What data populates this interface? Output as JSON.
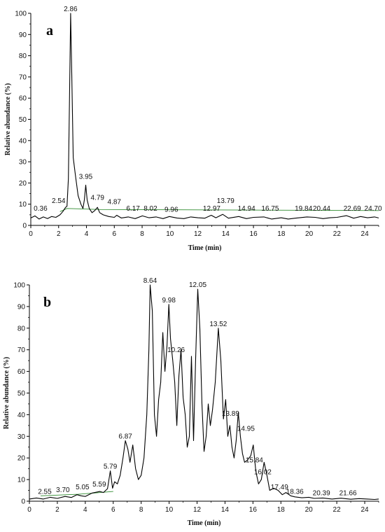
{
  "chart_data": [
    {
      "type": "line",
      "panel_label": "a",
      "xlabel": "Time (min)",
      "ylabel": "Relative abundance (%)",
      "xlim": [
        0,
        25
      ],
      "ylim": [
        0,
        100
      ],
      "x_ticks": [
        0,
        2,
        4,
        6,
        8,
        10,
        12,
        14,
        16,
        18,
        20,
        22,
        24
      ],
      "y_ticks": [
        0,
        10,
        20,
        30,
        40,
        50,
        60,
        70,
        80,
        90,
        100
      ],
      "grid": false,
      "series": [
        {
          "x": [
            0.0,
            0.3,
            0.6,
            0.9,
            1.2,
            1.5,
            1.8,
            2.1,
            2.3,
            2.5,
            2.6,
            2.7,
            2.78,
            2.86,
            2.95,
            3.05,
            3.2,
            3.4,
            3.6,
            3.75,
            3.85,
            3.95,
            4.05,
            4.2,
            4.4,
            4.6,
            4.79,
            4.95,
            5.2,
            5.6,
            6.0,
            6.17,
            6.5,
            7.0,
            7.5,
            8.02,
            8.5,
            9.0,
            9.5,
            9.96,
            10.5,
            11.0,
            11.5,
            12.0,
            12.5,
            12.97,
            13.3,
            13.79,
            14.2,
            14.94,
            15.5,
            16.0,
            16.75,
            17.3,
            18.0,
            18.5,
            19.0,
            19.84,
            20.44,
            21.0,
            21.5,
            22.0,
            22.69,
            23.2,
            23.7,
            24.2,
            24.7,
            25.0
          ],
          "y": [
            3.5,
            4.5,
            3.0,
            4.0,
            3.2,
            4.2,
            3.8,
            5.0,
            6.5,
            8.5,
            9.0,
            22.0,
            60.0,
            100.0,
            70.0,
            32.0,
            24.0,
            14.0,
            10.0,
            8.0,
            12.0,
            19.0,
            12.0,
            8.0,
            6.0,
            7.0,
            8.5,
            6.0,
            5.0,
            4.2,
            3.8,
            4.8,
            3.5,
            4.0,
            3.2,
            4.5,
            3.6,
            4.0,
            3.2,
            4.2,
            3.5,
            3.2,
            4.0,
            3.6,
            3.4,
            4.8,
            3.6,
            5.2,
            3.4,
            4.2,
            3.2,
            3.8,
            4.0,
            3.0,
            3.6,
            3.0,
            3.4,
            4.0,
            3.8,
            3.2,
            3.6,
            3.8,
            4.6,
            3.4,
            4.2,
            3.6,
            4.0,
            3.5
          ]
        }
      ],
      "baseline": {
        "x": [
          2.1,
          2.6,
          5.0,
          25.0
        ],
        "y": [
          6.5,
          8.0,
          7.5,
          7.0
        ]
      },
      "annotations": [
        {
          "text": "2.86",
          "x": 2.86,
          "y": 100
        },
        {
          "text": "0.36",
          "x": 0.7,
          "y": 6
        },
        {
          "text": "2.54",
          "x": 2.0,
          "y": 9.5
        },
        {
          "text": "3.95",
          "x": 3.95,
          "y": 21
        },
        {
          "text": "4.79",
          "x": 4.79,
          "y": 11
        },
        {
          "text": "4.87",
          "x": 6.0,
          "y": 9.0
        },
        {
          "text": "6.17",
          "x": 7.35,
          "y": 6
        },
        {
          "text": "8.02",
          "x": 8.6,
          "y": 6
        },
        {
          "text": "9.96",
          "x": 10.1,
          "y": 5.5
        },
        {
          "text": "12.97",
          "x": 13.0,
          "y": 6
        },
        {
          "text": "13.79",
          "x": 14.0,
          "y": 9.5
        },
        {
          "text": "14.94",
          "x": 15.5,
          "y": 6
        },
        {
          "text": "16.75",
          "x": 17.2,
          "y": 6
        },
        {
          "text": "19.84",
          "x": 19.6,
          "y": 6
        },
        {
          "text": "20.44",
          "x": 20.9,
          "y": 6
        },
        {
          "text": "22.69",
          "x": 23.1,
          "y": 6
        },
        {
          "text": "24.70",
          "x": 24.6,
          "y": 6
        }
      ]
    },
    {
      "type": "line",
      "panel_label": "b",
      "xlabel": "Time (min)",
      "ylabel": "Relative abundance (%)",
      "xlim": [
        0,
        25
      ],
      "ylim": [
        0,
        100
      ],
      "x_ticks": [
        0,
        2,
        4,
        6,
        8,
        10,
        12,
        14,
        16,
        18,
        20,
        22,
        24
      ],
      "y_ticks": [
        0,
        10,
        20,
        30,
        40,
        50,
        60,
        70,
        80,
        90,
        100
      ],
      "grid": false,
      "series": [
        {
          "x": [
            0.0,
            0.5,
            1.0,
            1.5,
            2.0,
            2.55,
            3.0,
            3.4,
            3.7,
            4.0,
            4.5,
            5.05,
            5.3,
            5.59,
            5.79,
            5.95,
            6.1,
            6.3,
            6.5,
            6.7,
            6.87,
            7.05,
            7.2,
            7.4,
            7.6,
            7.8,
            8.0,
            8.2,
            8.4,
            8.55,
            8.64,
            8.8,
            8.95,
            9.1,
            9.25,
            9.4,
            9.55,
            9.7,
            9.85,
            9.98,
            10.1,
            10.26,
            10.4,
            10.55,
            10.7,
            10.85,
            11.0,
            11.15,
            11.3,
            11.45,
            11.6,
            11.75,
            11.9,
            12.05,
            12.2,
            12.35,
            12.5,
            12.65,
            12.8,
            12.95,
            13.1,
            13.3,
            13.52,
            13.7,
            13.89,
            14.05,
            14.2,
            14.35,
            14.5,
            14.65,
            14.8,
            14.95,
            15.1,
            15.25,
            15.4,
            15.6,
            15.84,
            16.02,
            16.2,
            16.4,
            16.6,
            16.8,
            17.0,
            17.2,
            17.49,
            17.8,
            18.1,
            18.36,
            18.7,
            19.0,
            19.5,
            20.0,
            20.39,
            21.0,
            21.66,
            22.3,
            23.0,
            23.6,
            24.2,
            24.7,
            25.0
          ],
          "y": [
            1.0,
            1.5,
            1.0,
            1.8,
            1.3,
            2.2,
            1.7,
            3.0,
            2.5,
            2.2,
            3.8,
            4.5,
            4.0,
            5.8,
            14.0,
            6.0,
            9.0,
            8.0,
            12.0,
            20.0,
            28.0,
            24.0,
            18.0,
            26.0,
            15.0,
            10.0,
            12.0,
            20.0,
            40.0,
            70.0,
            100.0,
            88.0,
            40.0,
            30.0,
            47.0,
            55.0,
            78.0,
            60.0,
            72.0,
            91.0,
            75.0,
            65.0,
            55.0,
            35.0,
            58.0,
            70.0,
            48.0,
            40.0,
            25.0,
            30.0,
            67.0,
            28.0,
            66.0,
            98.0,
            80.0,
            45.0,
            23.0,
            30.0,
            45.0,
            35.0,
            42.0,
            55.0,
            80.0,
            65.0,
            38.0,
            47.0,
            30.0,
            35.0,
            25.0,
            20.0,
            28.0,
            41.0,
            30.0,
            22.0,
            18.0,
            19.0,
            21.0,
            26.0,
            14.0,
            8.0,
            10.0,
            18.0,
            12.0,
            5.0,
            6.0,
            5.0,
            3.0,
            4.0,
            2.5,
            2.0,
            1.6,
            1.8,
            1.3,
            1.5,
            1.0,
            1.4,
            0.9,
            1.2,
            1.0,
            0.8,
            1.0
          ]
        }
      ],
      "baseline": {
        "x": [
          0.8,
          3.5,
          6.0
        ],
        "y": [
          2.5,
          3.2,
          4.5
        ]
      },
      "annotations": [
        {
          "text": "8.64",
          "x": 8.64,
          "y": 100
        },
        {
          "text": "9.98",
          "x": 9.98,
          "y": 91
        },
        {
          "text": "12.05",
          "x": 12.05,
          "y": 98
        },
        {
          "text": "13.52",
          "x": 13.52,
          "y": 80
        },
        {
          "text": "10.26",
          "x": 10.5,
          "y": 68
        },
        {
          "text": "13.89",
          "x": 14.4,
          "y": 38.5
        },
        {
          "text": "14.95",
          "x": 15.5,
          "y": 31.5
        },
        {
          "text": "15.84",
          "x": 16.1,
          "y": 17
        },
        {
          "text": "16.02",
          "x": 16.7,
          "y": 11.5
        },
        {
          "text": "17.49",
          "x": 17.9,
          "y": 4.5
        },
        {
          "text": "18.36",
          "x": 19.0,
          "y": 2.5
        },
        {
          "text": "20.39",
          "x": 20.9,
          "y": 1.8
        },
        {
          "text": "21.66",
          "x": 22.8,
          "y": 1.8
        },
        {
          "text": "6.87",
          "x": 6.87,
          "y": 28
        },
        {
          "text": "5.79",
          "x": 5.79,
          "y": 14
        },
        {
          "text": "5.59",
          "x": 5.0,
          "y": 5.8
        },
        {
          "text": "5.05",
          "x": 3.8,
          "y": 4.5
        },
        {
          "text": "3.70",
          "x": 2.4,
          "y": 3.3
        },
        {
          "text": "2.55",
          "x": 1.1,
          "y": 2.5
        }
      ]
    }
  ],
  "colors": {
    "trace": "#000000",
    "baseline": "#2e8b2e"
  }
}
